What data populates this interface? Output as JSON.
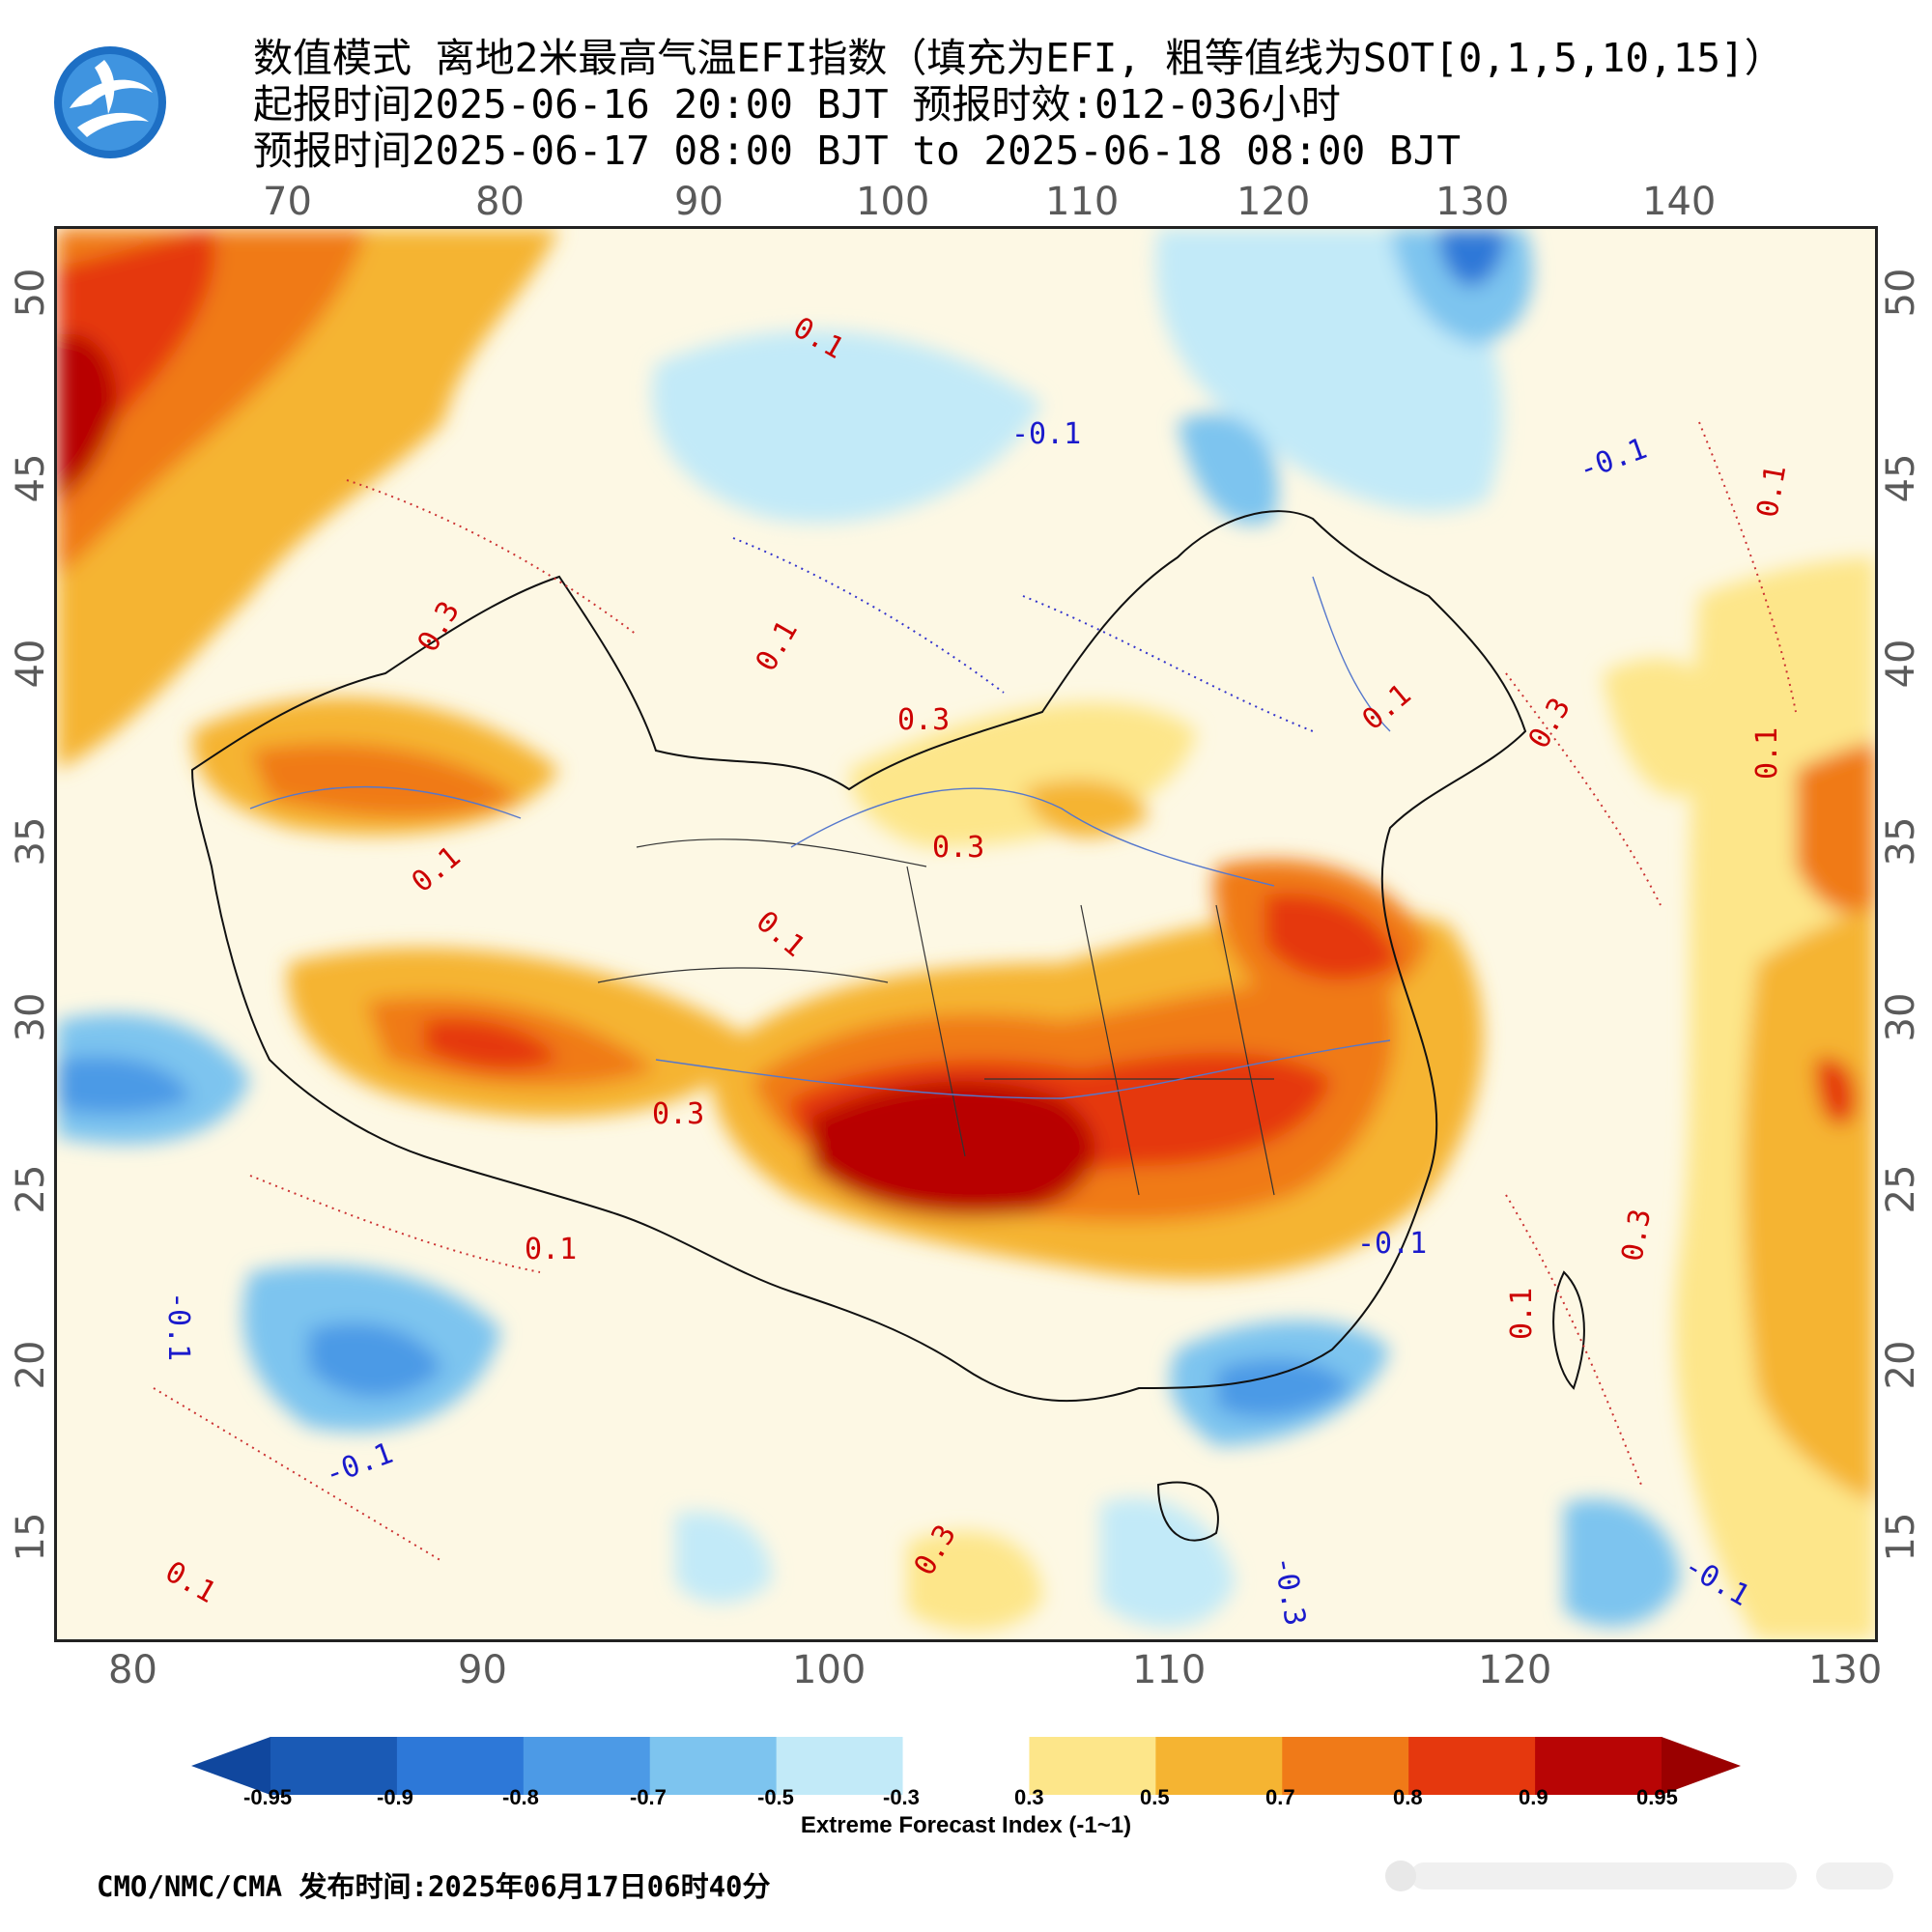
{
  "title": {
    "line1": "数值模式 离地2米最高气温EFI指数（填充为EFI, 粗等值线为SOT[0,1,5,10,15]）",
    "line2": "起报时间2025-06-16 20:00 BJT 预报时效:012-036小时",
    "line3": "预报时间2025-06-17 08:00 BJT to 2025-06-18 08:00 BJT"
  },
  "map": {
    "top_lon_ticks": [
      "70",
      "80",
      "90",
      "100",
      "110",
      "120",
      "130",
      "140"
    ],
    "bottom_lon_ticks": [
      "80",
      "90",
      "100",
      "110",
      "120",
      "130"
    ],
    "left_lat_ticks": [
      "50",
      "45",
      "40",
      "35",
      "30",
      "25",
      "20",
      "15"
    ],
    "right_lat_ticks": [
      "50",
      "45",
      "40",
      "35",
      "30",
      "25",
      "20",
      "15"
    ],
    "contour_labels": [
      {
        "text": "0.1",
        "color": "#cc0000"
      },
      {
        "text": "-0.1",
        "color": "#1a1acc"
      },
      {
        "text": "0.3",
        "color": "#cc0000"
      },
      {
        "text": "0.1",
        "color": "#cc0000"
      },
      {
        "text": "0.3",
        "color": "#cc0000"
      },
      {
        "text": "0.3",
        "color": "#cc0000"
      },
      {
        "text": "0.1",
        "color": "#cc0000"
      },
      {
        "text": "0.1",
        "color": "#cc0000"
      },
      {
        "text": "0.3",
        "color": "#cc0000"
      },
      {
        "text": "0.1",
        "color": "#cc0000"
      },
      {
        "text": "-0.1",
        "color": "#1a1acc"
      },
      {
        "text": "-0.1",
        "color": "#1a1acc"
      },
      {
        "text": "-0.3",
        "color": "#1a1acc"
      },
      {
        "text": "0.3",
        "color": "#cc0000"
      },
      {
        "text": "0.1",
        "color": "#cc0000"
      },
      {
        "text": "-0.1",
        "color": "#1a1acc"
      },
      {
        "text": "0.1",
        "color": "#cc0000"
      },
      {
        "text": "0.1",
        "color": "#cc0000"
      },
      {
        "text": "0.3",
        "color": "#cc0000"
      },
      {
        "text": "0.3",
        "color": "#cc0000"
      },
      {
        "text": "0.1",
        "color": "#cc0000"
      },
      {
        "text": "0.1",
        "color": "#cc0000"
      },
      {
        "text": "-0.1",
        "color": "#1a1acc"
      },
      {
        "text": "-0.1",
        "color": "#1a1acc"
      }
    ]
  },
  "colorbar": {
    "labels": [
      "-0.95",
      "-0.9",
      "-0.8",
      "-0.7",
      "-0.5",
      "-0.3",
      "0.3",
      "0.5",
      "0.7",
      "0.8",
      "0.9",
      "0.95"
    ],
    "colors": [
      "#1a5ab5",
      "#2d78d8",
      "#4c9ae6",
      "#7dc4ef",
      "#c2eaf8",
      "#ffffff",
      "#fde68a",
      "#f5b432",
      "#f07a18",
      "#e5380e",
      "#b80505"
    ],
    "low_end_color": "#10479e",
    "high_end_color": "#9a0000",
    "title": "Extreme Forecast Index (-1~1)"
  },
  "footer": "CMO/NMC/CMA 发布时间:2025年06月17日06时40分"
}
